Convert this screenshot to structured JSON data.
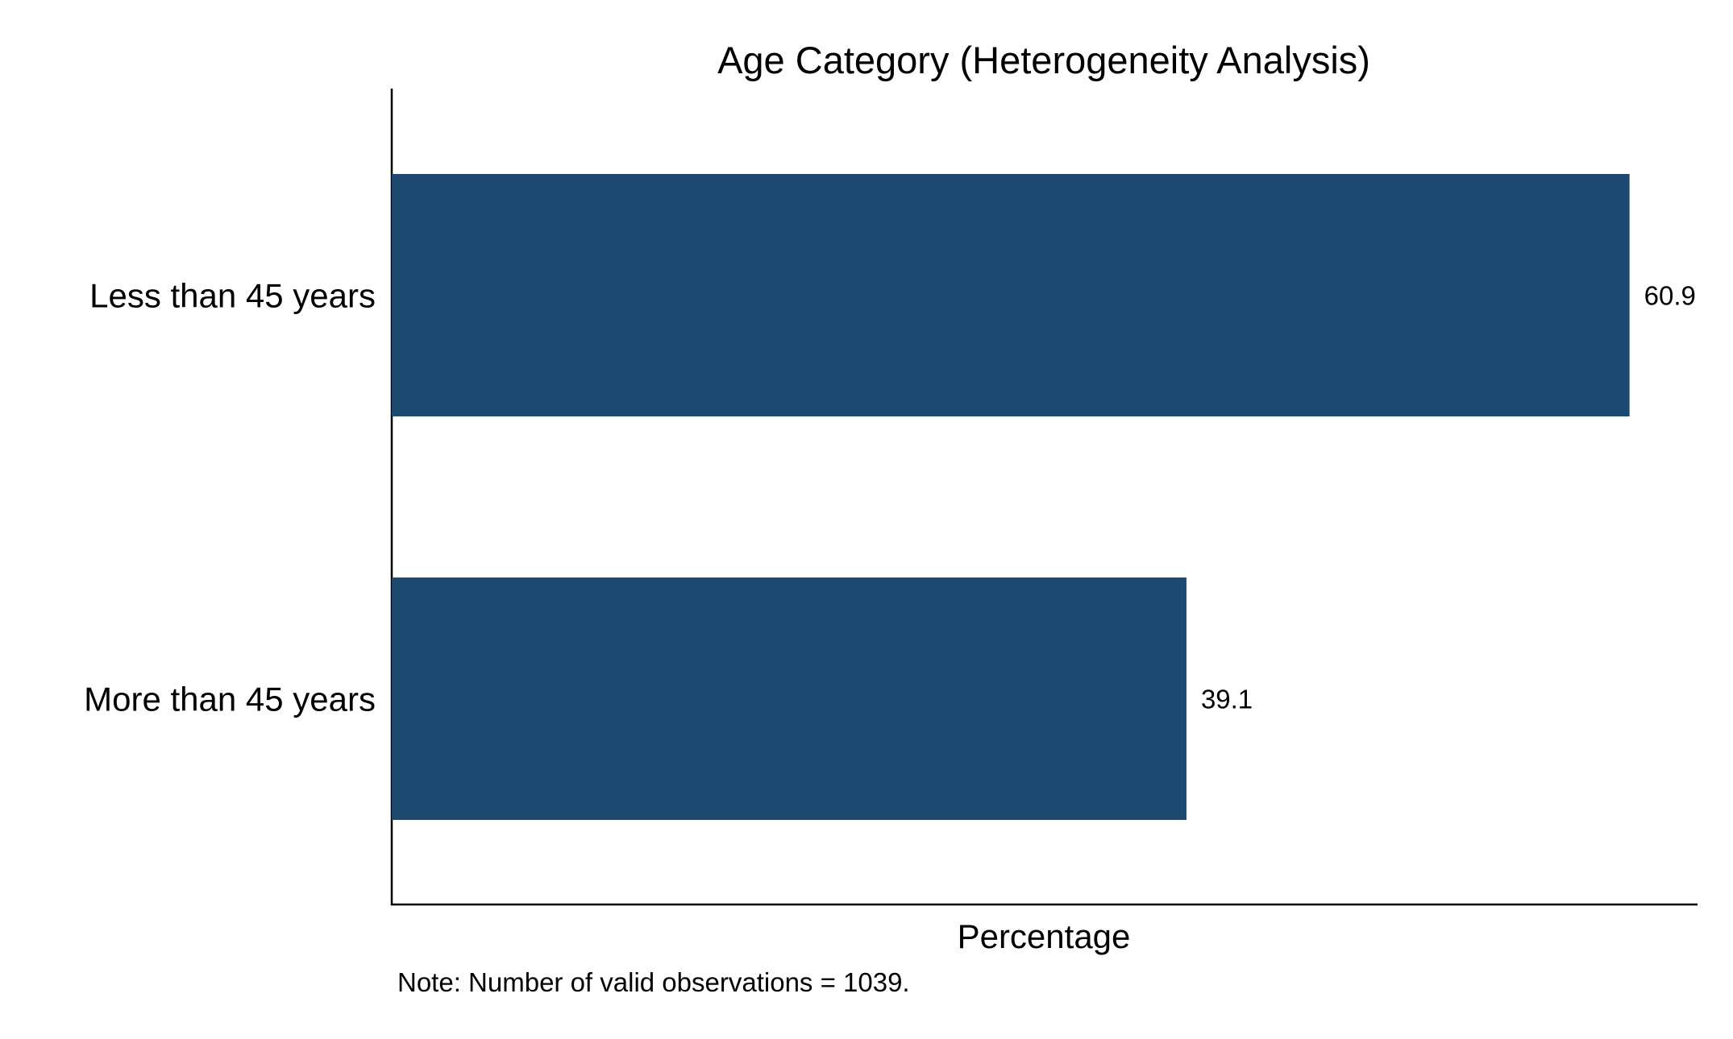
{
  "chart_data": {
    "type": "bar",
    "orientation": "horizontal",
    "title": "Age Category (Heterogeneity Analysis)",
    "xlabel": "Percentage",
    "ylabel": "",
    "xlim": [
      0,
      62.5
    ],
    "grid": false,
    "categories": [
      "Less than 45 years",
      "More than 45 years"
    ],
    "values": [
      60.9,
      39.1
    ],
    "data_labels": [
      "60.9",
      "39.1"
    ],
    "bar_color": "#1d4870",
    "note": "Note: Number of valid observations = 1039."
  }
}
